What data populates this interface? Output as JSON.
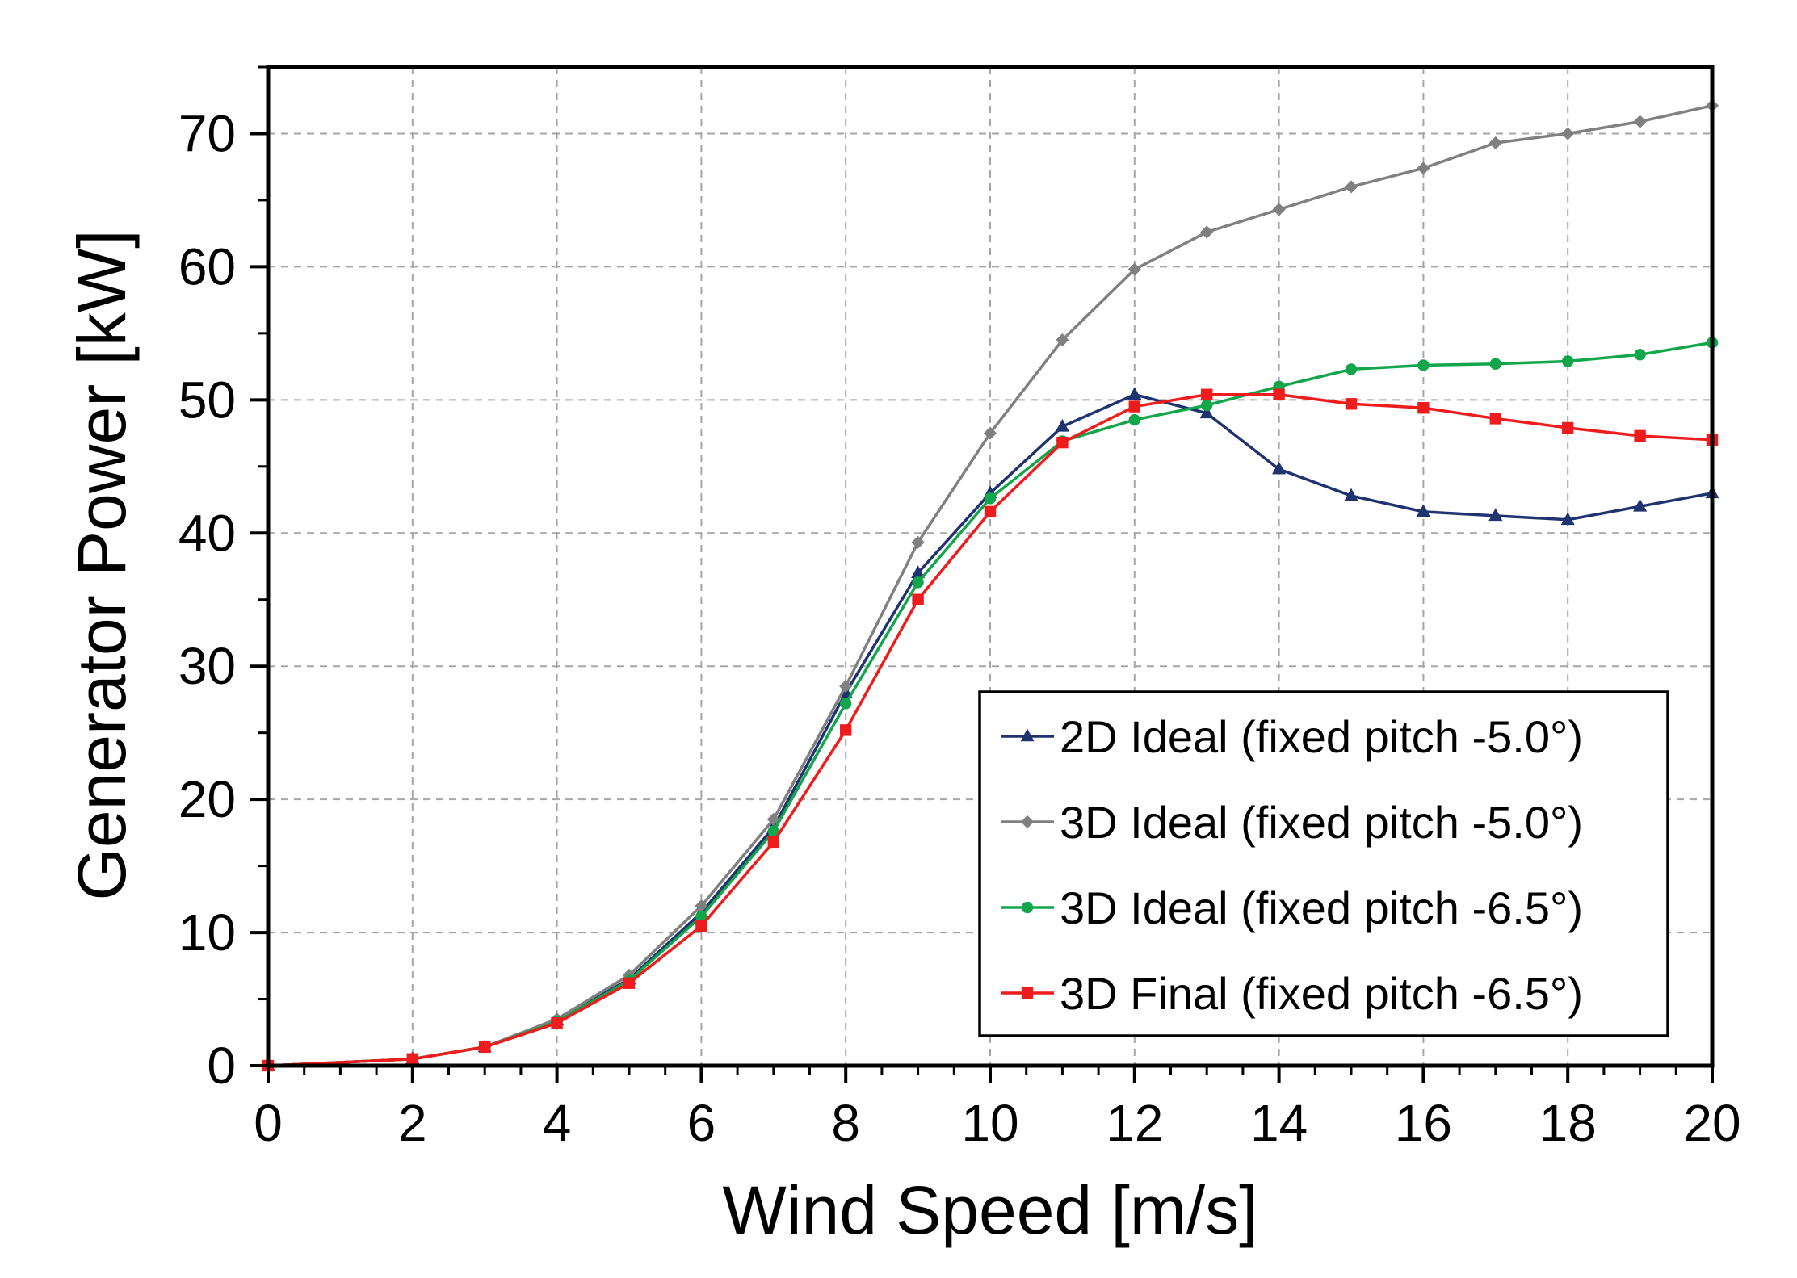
{
  "chart_data": {
    "type": "line",
    "title": "",
    "xlabel": "Wind Speed [m/s]",
    "ylabel": "Generator Power [kW]",
    "xlim": [
      0,
      20
    ],
    "ylim": [
      0,
      75
    ],
    "x_ticks": [
      0,
      2,
      4,
      6,
      8,
      10,
      12,
      14,
      16,
      18,
      20
    ],
    "x_tick_labels": [
      "0",
      "2",
      "4",
      "6",
      "8",
      "10",
      "12",
      "14",
      "16",
      "18",
      "20"
    ],
    "y_ticks": [
      0,
      10,
      20,
      30,
      40,
      50,
      60,
      70
    ],
    "y_tick_labels": [
      "0",
      "10",
      "20",
      "30",
      "40",
      "50",
      "60",
      "70"
    ],
    "grid": true,
    "legend_position": "bottom-right",
    "x": [
      0,
      2,
      3,
      4,
      5,
      6,
      7,
      8,
      9,
      10,
      11,
      12,
      13,
      14,
      15,
      16,
      17,
      18,
      19,
      20
    ],
    "series": [
      {
        "name": "2D Ideal (fixed pitch -5.0°)",
        "color": "#1f3371",
        "marker": "triangle",
        "values": [
          0,
          0.5,
          1.4,
          3.4,
          6.5,
          11.5,
          17.9,
          28.0,
          37.0,
          43.0,
          48.0,
          50.4,
          49.0,
          44.8,
          42.8,
          41.6,
          41.3,
          41.0,
          42.0,
          43.0
        ]
      },
      {
        "name": "3D Ideal (fixed pitch -5.0°)",
        "color": "#808080",
        "marker": "diamond",
        "values": [
          0,
          0.5,
          1.4,
          3.5,
          6.8,
          12.0,
          18.5,
          28.5,
          39.3,
          47.5,
          54.5,
          59.8,
          62.6,
          64.3,
          66.0,
          67.4,
          69.3,
          70.0,
          70.9,
          72.1
        ]
      },
      {
        "name": "3D Ideal (fixed pitch -6.5°)",
        "color": "#12a64b",
        "marker": "circle",
        "values": [
          0,
          0.5,
          1.4,
          3.3,
          6.4,
          11.2,
          17.6,
          27.2,
          36.3,
          42.6,
          46.9,
          48.5,
          49.6,
          51.0,
          52.3,
          52.6,
          52.7,
          52.9,
          53.4,
          54.3
        ]
      },
      {
        "name": "3D Final (fixed pitch -6.5°)",
        "color": "#ee1c1c",
        "marker": "square",
        "values": [
          0,
          0.5,
          1.4,
          3.2,
          6.2,
          10.5,
          16.8,
          25.2,
          35.0,
          41.6,
          46.8,
          49.5,
          50.4,
          50.4,
          49.7,
          49.4,
          48.6,
          47.9,
          47.3,
          47.0
        ]
      }
    ]
  }
}
